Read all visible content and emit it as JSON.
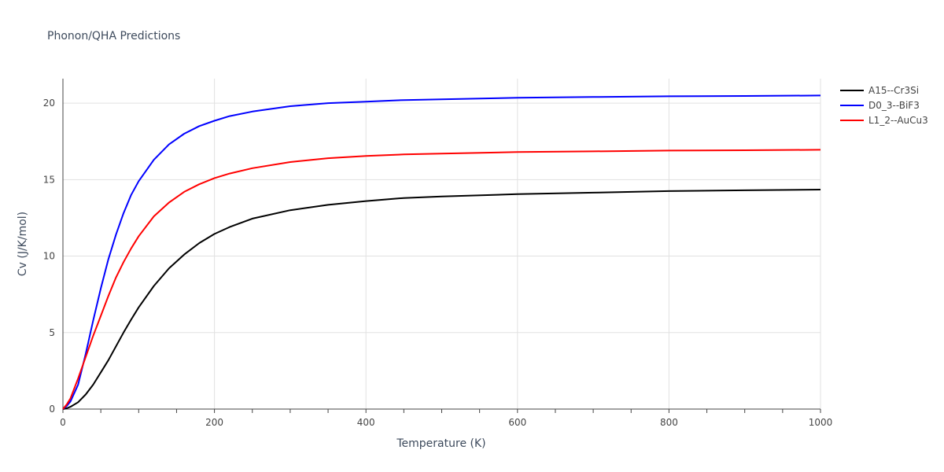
{
  "chart_data": {
    "type": "line",
    "title": "Phonon/QHA Predictions",
    "xlabel": "Temperature (K)",
    "ylabel": "Cv (J/K/mol)",
    "xlim": [
      0,
      1000
    ],
    "ylim": [
      0,
      21.6
    ],
    "xticks": [
      0,
      200,
      400,
      600,
      800,
      1000
    ],
    "yticks": [
      0,
      5,
      10,
      15,
      20
    ],
    "grid": true,
    "legend_position": "top-right outside",
    "series": [
      {
        "name": "A15--Cr3Si",
        "color": "#000000",
        "x": [
          0,
          5,
          10,
          20,
          30,
          40,
          50,
          60,
          70,
          80,
          90,
          100,
          120,
          140,
          160,
          180,
          200,
          220,
          250,
          300,
          350,
          400,
          450,
          500,
          600,
          700,
          800,
          900,
          1000
        ],
        "y": [
          0,
          0.05,
          0.15,
          0.45,
          0.95,
          1.6,
          2.4,
          3.2,
          4.1,
          5.0,
          5.85,
          6.65,
          8.05,
          9.2,
          10.1,
          10.85,
          11.45,
          11.9,
          12.45,
          13.0,
          13.35,
          13.6,
          13.8,
          13.9,
          14.05,
          14.15,
          14.25,
          14.3,
          14.35
        ]
      },
      {
        "name": "D0_3--BiF3",
        "color": "#0000ff",
        "x": [
          0,
          5,
          10,
          20,
          30,
          40,
          50,
          60,
          70,
          80,
          90,
          100,
          120,
          140,
          160,
          180,
          200,
          220,
          250,
          300,
          350,
          400,
          450,
          500,
          600,
          700,
          800,
          900,
          1000
        ],
        "y": [
          0,
          0.2,
          0.5,
          1.6,
          3.6,
          5.8,
          7.9,
          9.8,
          11.4,
          12.8,
          14.0,
          14.9,
          16.3,
          17.3,
          18.0,
          18.5,
          18.85,
          19.15,
          19.45,
          19.8,
          20.0,
          20.1,
          20.2,
          20.25,
          20.35,
          20.4,
          20.45,
          20.47,
          20.5
        ]
      },
      {
        "name": "L1_2--AuCu3",
        "color": "#ff0000",
        "x": [
          0,
          5,
          10,
          20,
          30,
          40,
          50,
          60,
          70,
          80,
          90,
          100,
          120,
          140,
          160,
          180,
          200,
          220,
          250,
          300,
          350,
          400,
          450,
          500,
          600,
          700,
          800,
          900,
          1000
        ],
        "y": [
          0,
          0.3,
          0.7,
          2.0,
          3.4,
          4.8,
          6.1,
          7.4,
          8.6,
          9.6,
          10.5,
          11.3,
          12.6,
          13.5,
          14.2,
          14.7,
          15.1,
          15.4,
          15.75,
          16.15,
          16.4,
          16.55,
          16.65,
          16.7,
          16.8,
          16.85,
          16.9,
          16.92,
          16.95
        ]
      }
    ]
  }
}
